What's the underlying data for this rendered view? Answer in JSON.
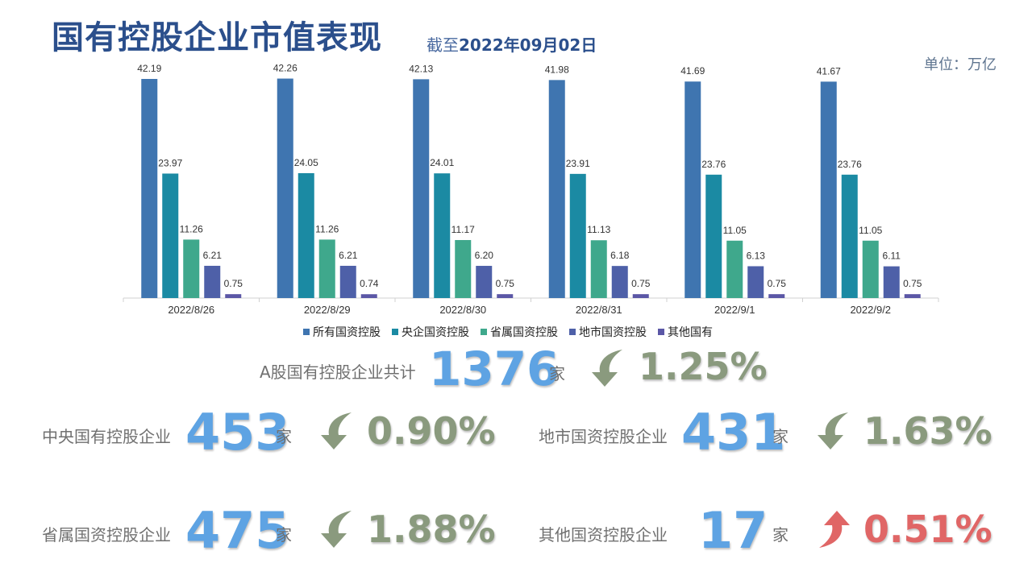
{
  "header": {
    "title": "国有控股企业市值表现",
    "asof_prefix": "截至",
    "asof_date": "2022年09月02日",
    "unit": "单位：万亿"
  },
  "chart_data": {
    "type": "bar",
    "categories": [
      "2022/8/26",
      "2022/8/29",
      "2022/8/30",
      "2022/8/31",
      "2022/9/1",
      "2022/9/2"
    ],
    "series": [
      {
        "name": "所有国资控股",
        "color": "#3f75b0",
        "values": [
          42.19,
          42.26,
          42.13,
          41.98,
          41.69,
          41.67
        ]
      },
      {
        "name": "央企国资控股",
        "color": "#1b8aa3",
        "values": [
          23.97,
          24.05,
          24.01,
          23.91,
          23.76,
          23.76
        ]
      },
      {
        "name": "省属国资控股",
        "color": "#3fa88c",
        "values": [
          11.26,
          11.26,
          11.17,
          11.13,
          11.05,
          11.05
        ]
      },
      {
        "name": "地市国资控股",
        "color": "#4e60a8",
        "values": [
          6.21,
          6.21,
          6.2,
          6.18,
          6.13,
          6.11
        ]
      },
      {
        "name": "其他国有",
        "color": "#5b57a6",
        "values": [
          0.75,
          0.74,
          0.75,
          0.75,
          0.75,
          0.75
        ]
      }
    ],
    "value_labels": {
      "s0": [
        "42.19",
        "42.26",
        "42.13",
        "41.98",
        "41.69",
        "41.67"
      ],
      "s1": [
        "23.97",
        "24.05",
        "24.01",
        "23.91",
        "23.76",
        "23.76"
      ],
      "s2": [
        "11.26",
        "11.26",
        "11.17",
        "11.13",
        "11.05",
        "11.05"
      ],
      "s3": [
        "6.21",
        "6.21",
        "6.20",
        "6.18",
        "6.13",
        "6.11"
      ],
      "s4": [
        "0.75",
        "0.74",
        "0.75",
        "0.75",
        "0.75",
        "0.75"
      ]
    },
    "ylim": [
      0,
      42.5
    ],
    "legend_position": "bottom",
    "grid": false
  },
  "summary": {
    "total": {
      "label": "A股国有控股企业共计",
      "value": "1376",
      "unit": "家",
      "pct": "1.25%",
      "direction": "down"
    },
    "central": {
      "label": "中央国有控股企业",
      "value": "453",
      "unit": "家",
      "pct": "0.90%",
      "direction": "down"
    },
    "municipal": {
      "label": "地市国资控股企业",
      "value": "431",
      "unit": "家",
      "pct": "1.63%",
      "direction": "down"
    },
    "provincial": {
      "label": "省属国资控股企业",
      "value": "475",
      "unit": "家",
      "pct": "1.88%",
      "direction": "down"
    },
    "other": {
      "label": "其他国资控股企业",
      "value": "17",
      "unit": "家",
      "pct": "0.51%",
      "direction": "up"
    }
  },
  "colors": {
    "down": "#8a9a7e",
    "up": "#e06666",
    "value": "#5ea3e3"
  }
}
